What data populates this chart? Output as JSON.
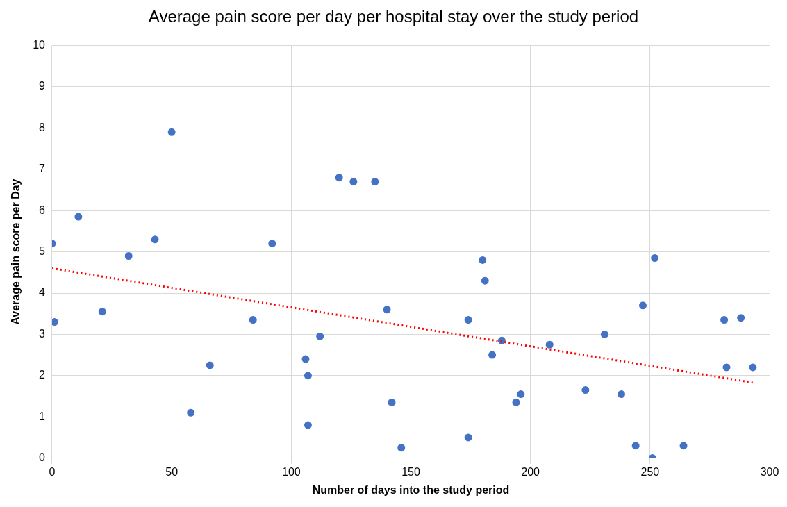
{
  "chart_data": {
    "type": "scatter",
    "title": "Average pain score per day per hospital stay over the study period",
    "xlabel": "Number of days into the study period",
    "ylabel": "Average pain score per Day",
    "xlim": [
      0,
      300
    ],
    "xticks": [
      0,
      50,
      100,
      150,
      200,
      250,
      300
    ],
    "ylim": [
      0,
      10
    ],
    "yticks": [
      0,
      1,
      2,
      3,
      4,
      5,
      6,
      7,
      8,
      9,
      10
    ],
    "grid": true,
    "legend": false,
    "marker": "circle",
    "series": [
      {
        "type": "scatter",
        "color": "#4472c4",
        "x": [
          0,
          1,
          11,
          21,
          32,
          43,
          50,
          58,
          66,
          84,
          92,
          106,
          107,
          107,
          112,
          120,
          126,
          135,
          140,
          142,
          146,
          174,
          174,
          180,
          181,
          184,
          188,
          194,
          196,
          208,
          223,
          231,
          238,
          247,
          244,
          251,
          252,
          264,
          281,
          282,
          288,
          293
        ],
        "values": [
          5.2,
          3.3,
          5.85,
          3.55,
          4.9,
          5.3,
          7.9,
          1.1,
          2.25,
          3.35,
          5.2,
          2.4,
          2.0,
          0.8,
          2.95,
          6.8,
          6.7,
          6.7,
          3.6,
          1.35,
          0.25,
          3.35,
          0.5,
          4.8,
          4.3,
          2.5,
          2.85,
          1.35,
          1.55,
          2.75,
          1.65,
          3.0,
          1.55,
          3.7,
          0.3,
          0.0,
          4.85,
          0.3,
          3.35,
          2.2,
          3.4,
          2.2
        ]
      },
      {
        "type": "line",
        "color": "#ff0000",
        "line_style": "dotted",
        "marker": "none",
        "x": [
          0,
          293
        ],
        "values": [
          4.6,
          1.83
        ]
      }
    ]
  }
}
